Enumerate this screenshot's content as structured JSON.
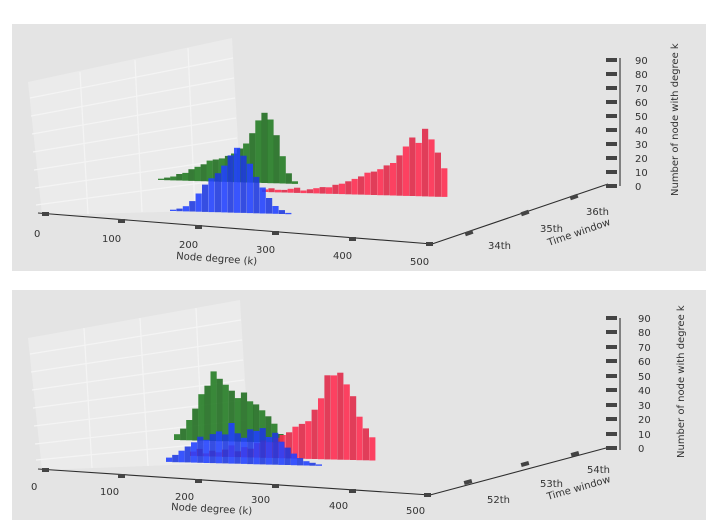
{
  "chart_data": [
    {
      "type": "bar",
      "title": "",
      "xlabel": "Node degree (k)",
      "ylabel": "Time window",
      "zlabel": "Number of node with degree k",
      "x_ticks": [
        "0",
        "100",
        "200",
        "300",
        "400",
        "500"
      ],
      "y_ticks": [
        "34th",
        "35th",
        "36th"
      ],
      "z_ticks": [
        "0",
        "10",
        "20",
        "30",
        "40",
        "50",
        "60",
        "70",
        "80",
        "90"
      ],
      "xlim": [
        0,
        500
      ],
      "zlim": [
        0,
        90
      ],
      "series": [
        {
          "name": "34th",
          "color": "#2040ff",
          "x_start": 160,
          "x_step": 8,
          "values": [
            1,
            2,
            4,
            8,
            14,
            21,
            26,
            30,
            36,
            44,
            50,
            44,
            38,
            28,
            20,
            12,
            6,
            3,
            1
          ]
        },
        {
          "name": "35th",
          "color": "#207a20",
          "x_start": 272,
          "x_step": 8,
          "values": [
            1,
            2,
            3,
            5,
            6,
            9,
            11,
            13,
            16,
            17,
            18,
            20,
            22,
            26,
            30,
            38,
            48,
            54,
            49,
            37,
            21,
            8,
            2
          ]
        },
        {
          "name": "36th",
          "color": "#ff2a4f",
          "x_start": 272,
          "x_step": 8,
          "values": [
            2,
            3,
            2,
            2,
            3,
            4,
            2,
            3,
            4,
            5,
            5,
            7,
            8,
            10,
            12,
            14,
            17,
            18,
            20,
            23,
            25,
            31,
            38,
            45,
            41,
            52,
            44,
            34,
            22
          ]
        }
      ]
    },
    {
      "type": "bar",
      "title": "",
      "xlabel": "Node degree (k)",
      "ylabel": "Time window",
      "zlabel": "Number of node with degree k",
      "x_ticks": [
        "0",
        "100",
        "200",
        "300",
        "400",
        "500"
      ],
      "y_ticks": [
        "52th",
        "53th",
        "54th"
      ],
      "z_ticks": [
        "0",
        "10",
        "20",
        "30",
        "40",
        "50",
        "60",
        "70",
        "80",
        "90"
      ],
      "xlim": [
        0,
        500
      ],
      "zlim": [
        0,
        90
      ],
      "series": [
        {
          "name": "52th",
          "color": "#2040ff",
          "x_start": 160,
          "x_step": 8,
          "values": [
            3,
            5,
            8,
            11,
            14,
            18,
            16,
            20,
            22,
            20,
            28,
            21,
            18,
            24,
            23,
            25,
            19,
            22,
            16,
            12,
            8,
            5,
            3,
            2,
            1
          ]
        },
        {
          "name": "53th",
          "color": "#207a20",
          "x_start": 280,
          "x_step": 8,
          "values": [
            4,
            8,
            14,
            22,
            32,
            38,
            48,
            43,
            39,
            35,
            30,
            34,
            28,
            26,
            22,
            18,
            13,
            6
          ]
        },
        {
          "name": "54th",
          "color": "#ff2a4f",
          "x_start": 290,
          "x_step": 8,
          "values": [
            3,
            5,
            2,
            4,
            3,
            5,
            8,
            4,
            7,
            6,
            10,
            12,
            11,
            14,
            16,
            18,
            22,
            24,
            26,
            34,
            42,
            58,
            58,
            60,
            52,
            44,
            30,
            22,
            16
          ]
        }
      ]
    }
  ]
}
